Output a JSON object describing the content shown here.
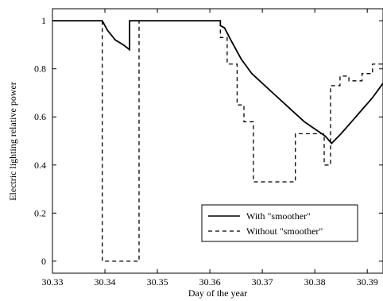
{
  "chart_data": {
    "type": "line",
    "xlabel": "Day of the year",
    "ylabel": "Electric lighting relative power",
    "xlim": [
      30.33,
      30.393
    ],
    "ylim": [
      -0.05,
      1.05
    ],
    "xticks": [
      "30.33",
      "30.34",
      "30.35",
      "30.36",
      "30.37",
      "30.38",
      "30.39"
    ],
    "yticks": [
      "0",
      "0.2",
      "0.4",
      "0.6",
      "0.8",
      "1"
    ],
    "grid": false,
    "legend_position": "lower-right",
    "series": [
      {
        "name": "With \"smoother\"",
        "style": "solid",
        "color": "#000000",
        "x": [
          30.33,
          30.3395,
          30.3405,
          30.342,
          30.3435,
          30.3447,
          30.3447,
          30.362,
          30.362,
          30.3628,
          30.364,
          30.366,
          30.368,
          30.37,
          30.372,
          30.374,
          30.376,
          30.378,
          30.38,
          30.382,
          30.3832,
          30.385,
          30.387,
          30.389,
          30.391,
          30.393
        ],
        "y": [
          1.0,
          1.0,
          0.96,
          0.92,
          0.9,
          0.88,
          1.0,
          1.0,
          0.98,
          0.97,
          0.92,
          0.84,
          0.78,
          0.74,
          0.7,
          0.66,
          0.62,
          0.58,
          0.55,
          0.52,
          0.49,
          0.53,
          0.58,
          0.63,
          0.68,
          0.74
        ]
      },
      {
        "name": "Without \"smoother\"",
        "style": "dashed",
        "color": "#000000",
        "x": [
          30.33,
          30.3395,
          30.3395,
          30.3465,
          30.3465,
          30.362,
          30.362,
          30.3633,
          30.3633,
          30.3652,
          30.3652,
          30.3665,
          30.3665,
          30.3683,
          30.3683,
          30.3763,
          30.3763,
          30.3818,
          30.3818,
          30.383,
          30.383,
          30.3848,
          30.3848,
          30.3865,
          30.3865,
          30.389,
          30.389,
          30.391,
          30.391,
          30.393
        ],
        "y": [
          1.0,
          1.0,
          0.0,
          0.0,
          1.0,
          1.0,
          0.93,
          0.93,
          0.82,
          0.82,
          0.65,
          0.65,
          0.58,
          0.58,
          0.33,
          0.33,
          0.53,
          0.53,
          0.4,
          0.4,
          0.73,
          0.73,
          0.77,
          0.77,
          0.75,
          0.75,
          0.78,
          0.78,
          0.82,
          0.82
        ]
      }
    ]
  }
}
